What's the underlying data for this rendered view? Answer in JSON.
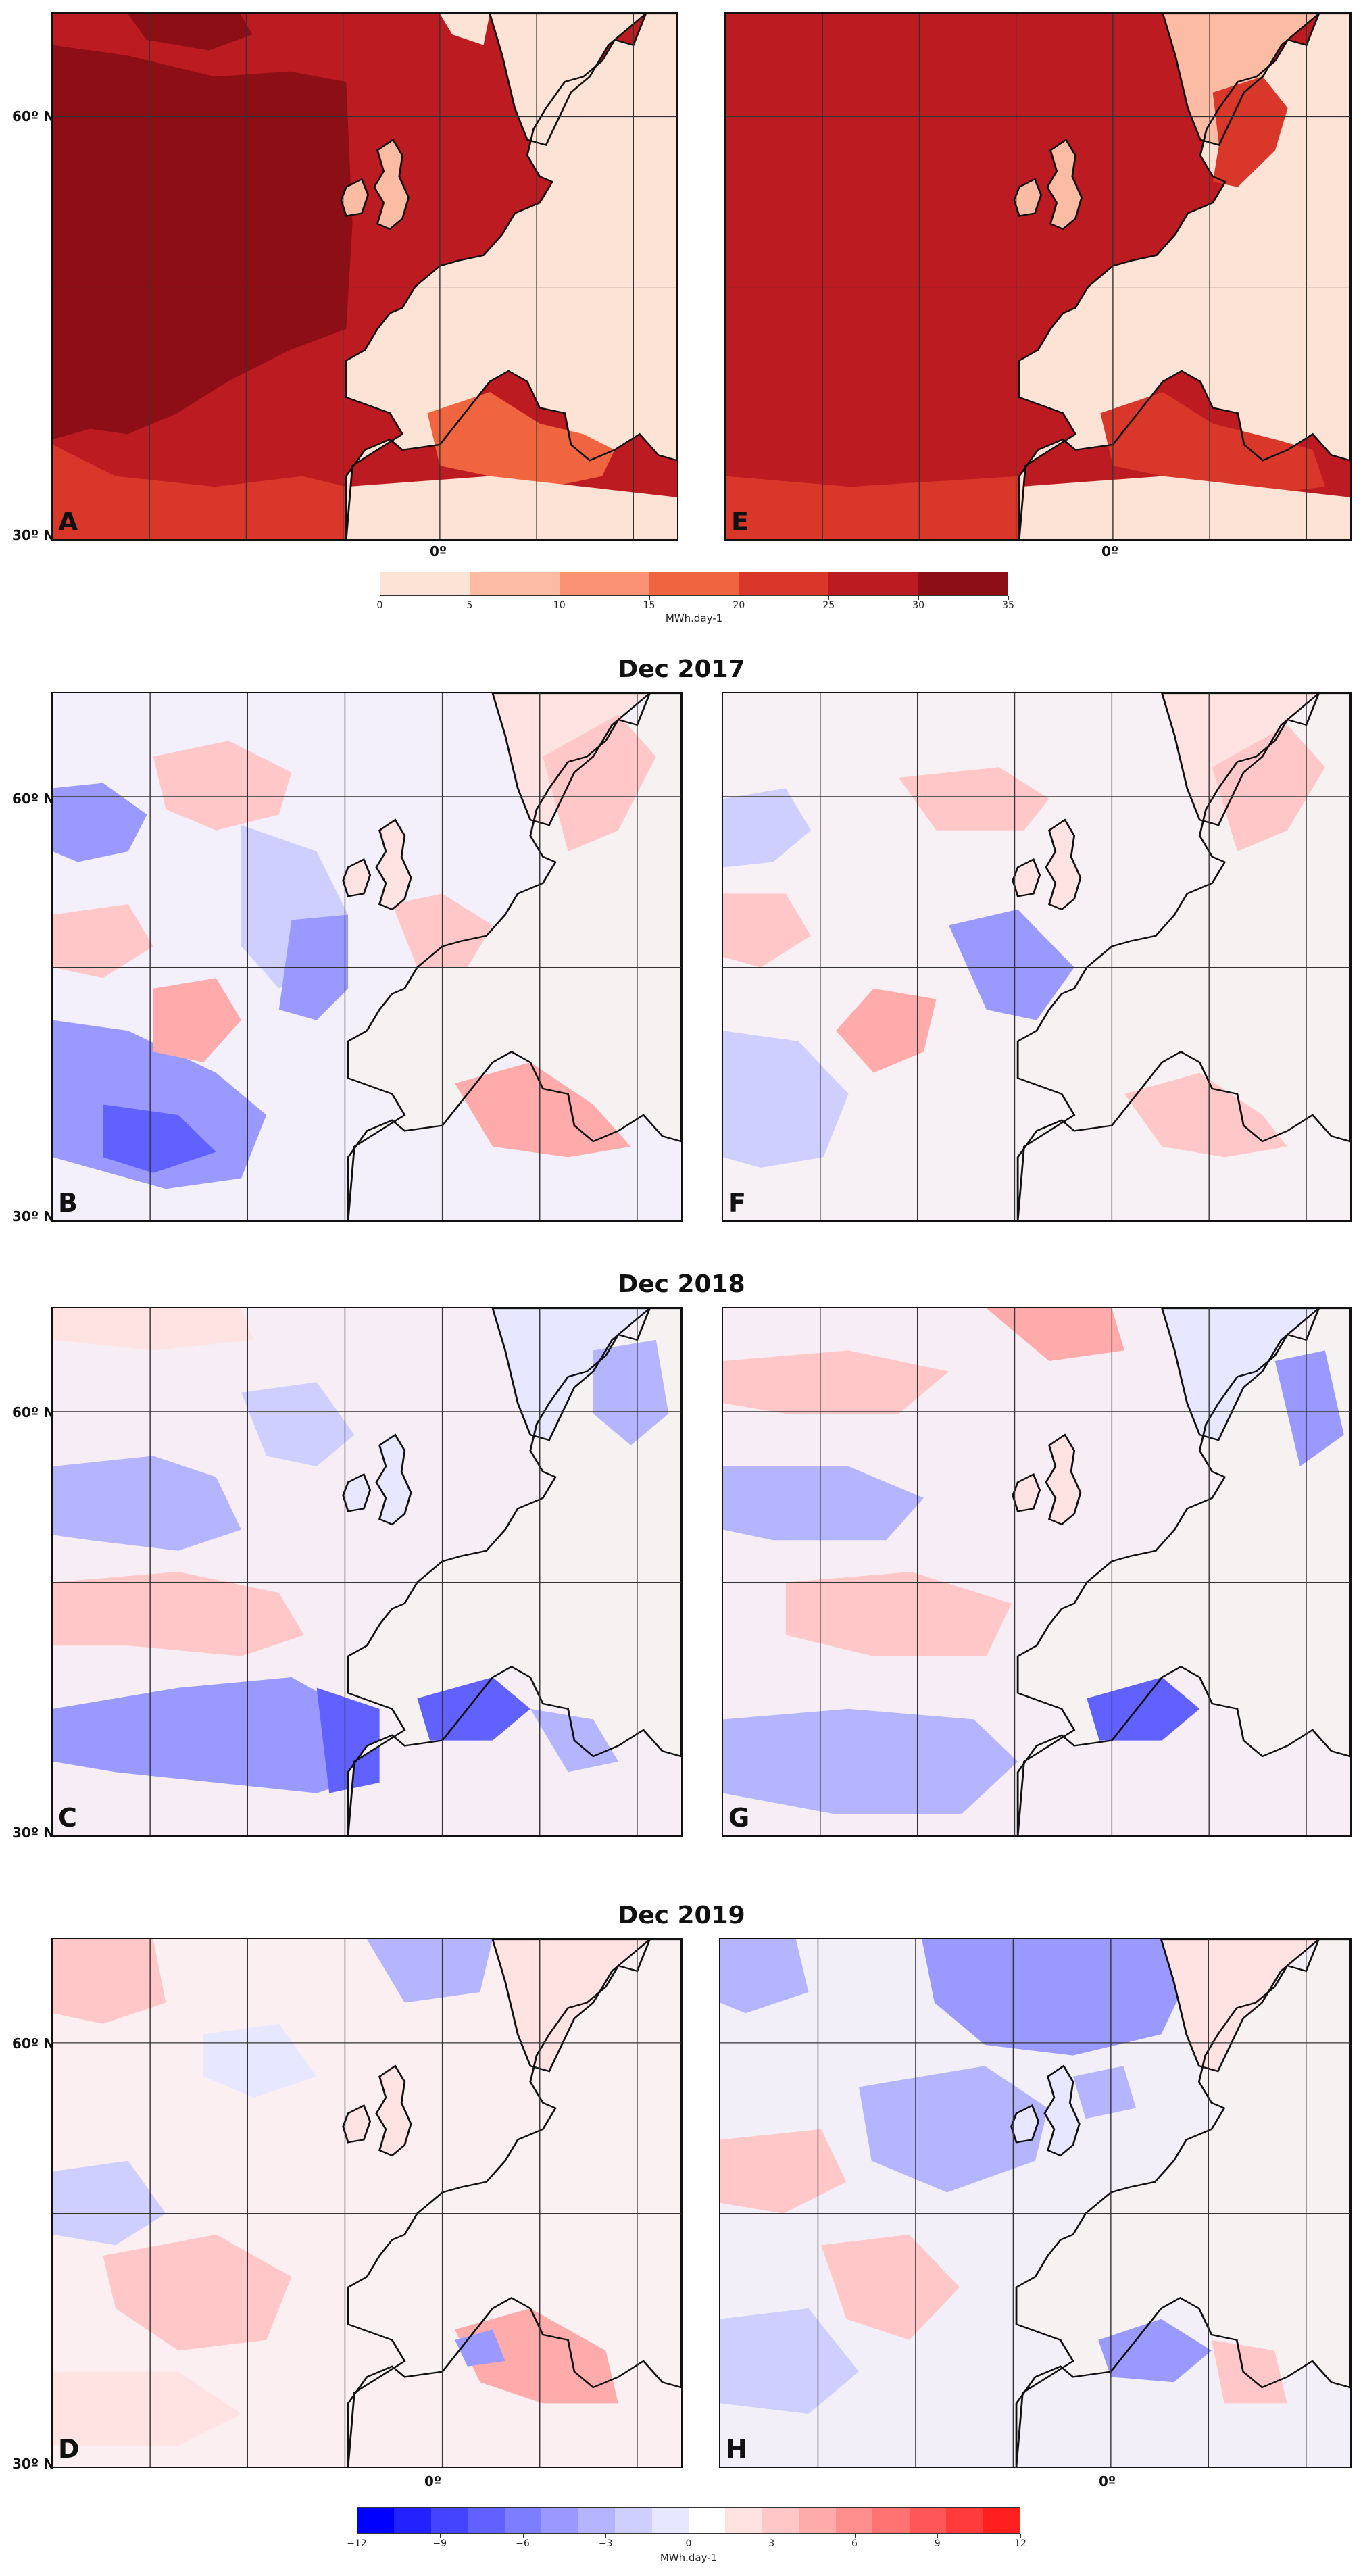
{
  "figure": {
    "lat_labels": [
      "60º N",
      "30º N"
    ],
    "lon_label": "0º"
  },
  "colorbar_absolute": {
    "ticks": [
      "0",
      "5",
      "10",
      "15",
      "20",
      "25",
      "30",
      "35"
    ],
    "units": "MWh.day-1",
    "colors": [
      "#fde2d6",
      "#fcbca3",
      "#fb9274",
      "#f0653f",
      "#d8372a",
      "#bd1b22",
      "#8e0e15"
    ]
  },
  "colorbar_anomaly": {
    "ticks": [
      "−12",
      "−9",
      "−6",
      "−3",
      "0",
      "3",
      "6",
      "9",
      "12"
    ],
    "units": "MWh.day-1",
    "colors": [
      "#0000ff",
      "#2222ff",
      "#4444ff",
      "#6161ff",
      "#7d7dff",
      "#9999ff",
      "#b4b4ff",
      "#cfcfff",
      "#e7e7ff",
      "#ffffff",
      "#ffe3e3",
      "#ffc7c7",
      "#ffabab",
      "#ff8f8f",
      "#ff7373",
      "#ff5757",
      "#ff3b3b",
      "#ff1f1f"
    ]
  },
  "sections": {
    "s2017": "Dec 2017",
    "s2018": "Dec 2018",
    "s2019": "Dec 2019"
  },
  "panels": {
    "A": {
      "letter": "A"
    },
    "E": {
      "letter": "E"
    },
    "B": {
      "letter": "B"
    },
    "F": {
      "letter": "F"
    },
    "C": {
      "letter": "C"
    },
    "G": {
      "letter": "G"
    },
    "D": {
      "letter": "D"
    },
    "H": {
      "letter": "H"
    }
  },
  "palette": {
    "abs_dark": "#8e0e15",
    "abs_mid": "#bd1b22",
    "abs_light": "#fde2d6",
    "land_outline": "#111111",
    "grid": "#333333"
  }
}
